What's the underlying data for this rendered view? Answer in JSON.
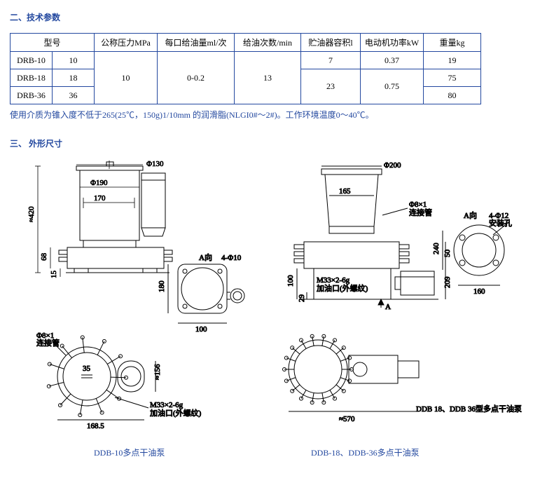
{
  "section1": {
    "title": "二、技术参数"
  },
  "table": {
    "headers": {
      "model": "型号",
      "pressure": "公称压力MPa",
      "oil_per": "每口给油量ml/次",
      "oil_times": "给油次数/min",
      "tank": "贮油器容积l",
      "power": "电动机功率kW",
      "weight": "重量kg"
    },
    "col_widths": {
      "model_a": 60,
      "model_b": 60,
      "pressure": 90,
      "oil_per": 110,
      "oil_times": 95,
      "tank": 85,
      "power": 90,
      "weight": 82
    },
    "rows": [
      {
        "model": "DRB-10",
        "cap": "10",
        "pressure": "10",
        "oil_per": "0-0.2",
        "oil_times": "13",
        "tank": "7",
        "power": "0.37",
        "weight": "19"
      },
      {
        "model": "DRB-18",
        "cap": "18",
        "tank": "23",
        "power": "0.75",
        "weight": "75"
      },
      {
        "model": "DRB-36",
        "cap": "36",
        "weight": "80"
      }
    ]
  },
  "note": "使用介质为锥入度不低于265(25℃，150g)1/10mm 的润滑脂(NLGI0#～2#)。工作环境温度0～40℃。",
  "section2": {
    "title": "三、 外形尺寸"
  },
  "drawings": {
    "d1": {
      "phi130": "Φ130",
      "phi190": "Φ190",
      "d170": "170",
      "h420": "≈420",
      "h68": "68",
      "h15": "15",
      "a_dir": "A向",
      "holes": "4-Φ10",
      "h180": "180",
      "w100": "100",
      "phi8": "Φ8×1",
      "conn": "连接管",
      "d35": "35",
      "h156": "≈156",
      "m33": "M33×2-6g",
      "oil_port": "加油口(外螺纹)",
      "w168": "168.5",
      "caption": "DDB-10多点干油泵"
    },
    "d2": {
      "phi200": "Φ200",
      "d165": "165",
      "phi8": "Φ8×1",
      "conn": "连接管",
      "m33": "M33×2-6g",
      "oil_port": "加油口(外螺纹)",
      "h50": "50",
      "h209": "209",
      "h100": "100",
      "h29": "29",
      "arrowA": "A",
      "a_dir": "A向",
      "holes": "4-Φ12",
      "mount": "安装孔",
      "h240": "240",
      "w160": "160",
      "w570": "≈570",
      "footer": "DDB 18、DDB 36型多点干油泵",
      "caption": "DDB-18、DDB-36多点干油泵"
    },
    "stroke": "#000000"
  }
}
